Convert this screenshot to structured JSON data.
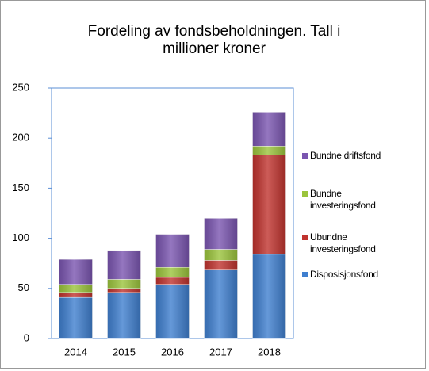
{
  "chart_data": {
    "type": "stacked_bar",
    "title": "Fordeling av fondsbeholdningen. Tall i millioner kroner",
    "categories": [
      "2014",
      "2015",
      "2016",
      "2017",
      "2018"
    ],
    "series": [
      {
        "name": "Disposisjonsfond",
        "color": "#3f7fcf",
        "values": [
          41,
          46,
          54,
          69,
          84
        ]
      },
      {
        "name": "Ubundne investeringsfond",
        "color": "#c0332e",
        "values": [
          5,
          4,
          7,
          9,
          99
        ]
      },
      {
        "name": "Bundne investeringsfond",
        "color": "#9bc43c",
        "values": [
          8,
          9,
          10,
          11,
          9
        ]
      },
      {
        "name": "Bundne driftsfond",
        "color": "#7a55b0",
        "values": [
          25,
          29,
          33,
          31,
          34
        ]
      }
    ],
    "ylim": [
      0,
      250
    ],
    "yticks": [
      0,
      50,
      100,
      150,
      200,
      250
    ],
    "legend": "right"
  }
}
